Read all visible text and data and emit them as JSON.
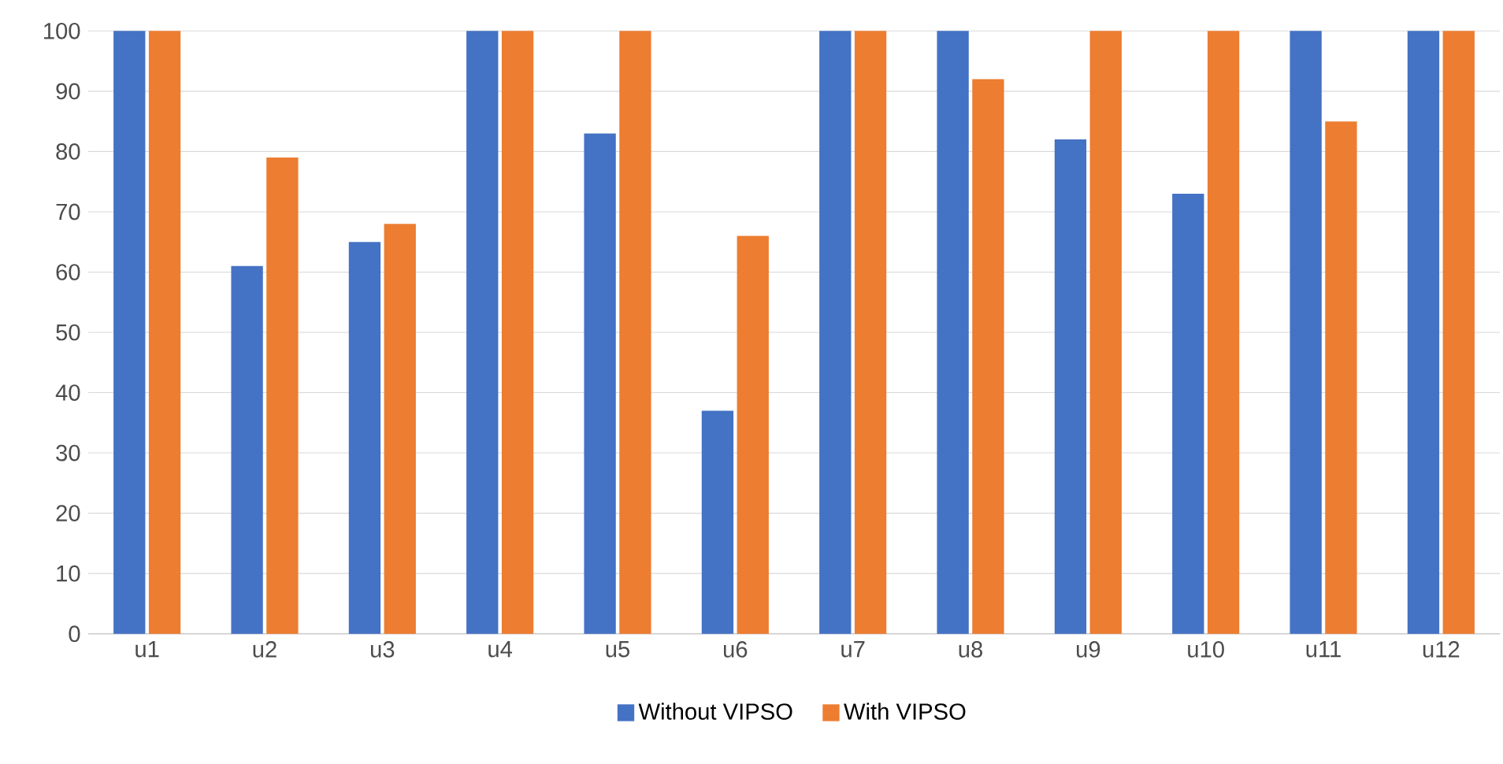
{
  "chart_data": {
    "type": "bar",
    "categories": [
      "u1",
      "u2",
      "u3",
      "u4",
      "u5",
      "u6",
      "u7",
      "u8",
      "u9",
      "u10",
      "u11",
      "u12"
    ],
    "series": [
      {
        "name": "Without VIPSO",
        "color": "#4472c4",
        "values": [
          100,
          61,
          65,
          100,
          83,
          37,
          100,
          100,
          82,
          73,
          100,
          100
        ]
      },
      {
        "name": "With VIPSO",
        "color": "#ed7d31",
        "values": [
          100,
          79,
          68,
          100,
          100,
          66,
          100,
          92,
          100,
          100,
          85,
          100
        ]
      }
    ],
    "ylim": [
      0,
      100
    ],
    "yticks": [
      0,
      10,
      20,
      30,
      40,
      50,
      60,
      70,
      80,
      90,
      100
    ],
    "grid": "y",
    "legend": "bottom"
  }
}
